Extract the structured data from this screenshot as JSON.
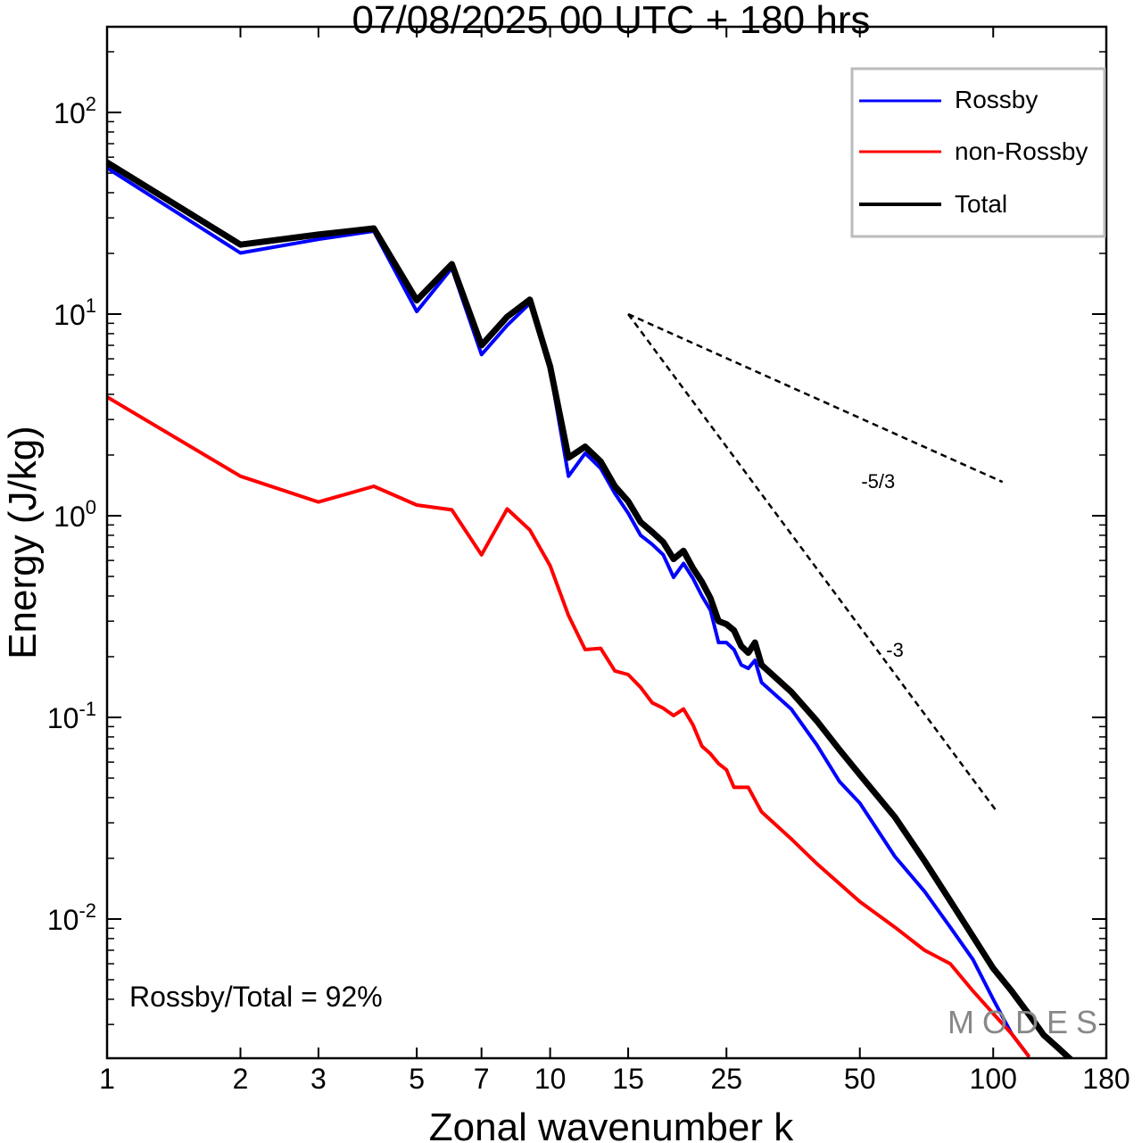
{
  "chart_data": {
    "type": "line",
    "title": "07/08/2025  00 UTC  + 180 hrs",
    "xlabel": "Zonal wavenumber k",
    "ylabel": "Energy (J/kg)",
    "xscale": "log",
    "yscale": "log",
    "xlim": [
      1,
      180
    ],
    "ylim": [
      0.00204,
      266
    ],
    "xticks": [
      1,
      2,
      3,
      5,
      7,
      10,
      15,
      25,
      50,
      100,
      180
    ],
    "xtick_labels": [
      "1",
      "2",
      "3",
      "5",
      "7",
      "10",
      "15",
      "25",
      "50",
      "100",
      "180"
    ],
    "yticks": [
      100,
      10,
      1,
      0.1,
      0.01
    ],
    "ytick_labels": [
      {
        "base": "10",
        "exp": "2"
      },
      {
        "base": "10",
        "exp": "1"
      },
      {
        "base": "10",
        "exp": "0"
      },
      {
        "base": "10",
        "exp": "-1"
      },
      {
        "base": "10",
        "exp": "-2"
      }
    ],
    "legend_position": "top-right",
    "series": [
      {
        "name": "Rossby",
        "color": "#0000ff",
        "x": [
          1,
          2,
          3,
          4,
          5,
          6,
          7,
          8,
          9,
          10,
          11,
          12,
          13,
          14,
          15,
          16,
          17,
          18,
          19,
          20,
          21,
          22,
          23,
          24,
          25,
          26,
          27,
          28,
          29,
          30,
          35,
          40,
          45,
          50,
          60,
          70,
          80,
          90,
          100,
          110,
          120
        ],
        "y": [
          53,
          20.1,
          23.5,
          25.8,
          10.3,
          16.9,
          6.3,
          8.8,
          11.3,
          5.3,
          1.57,
          2.04,
          1.72,
          1.29,
          1.03,
          0.8,
          0.72,
          0.64,
          0.495,
          0.58,
          0.49,
          0.4,
          0.34,
          0.235,
          0.235,
          0.217,
          0.182,
          0.175,
          0.192,
          0.149,
          0.11,
          0.073,
          0.048,
          0.0376,
          0.0204,
          0.0137,
          0.0091,
          0.0063,
          0.004,
          0.0027,
          0.0021
        ]
      },
      {
        "name": "non-Rossby",
        "color": "#ff0000",
        "x": [
          1,
          2,
          3,
          4,
          5,
          6,
          7,
          8,
          9,
          10,
          11,
          12,
          13,
          14,
          15,
          16,
          17,
          18,
          19,
          20,
          21,
          22,
          23,
          24,
          25,
          26,
          28,
          30,
          35,
          40,
          50,
          60,
          70,
          80,
          90,
          100,
          110,
          120
        ],
        "y": [
          3.88,
          1.57,
          1.17,
          1.4,
          1.13,
          1.07,
          0.64,
          1.08,
          0.85,
          0.565,
          0.32,
          0.217,
          0.22,
          0.17,
          0.163,
          0.141,
          0.118,
          0.111,
          0.102,
          0.11,
          0.092,
          0.072,
          0.066,
          0.059,
          0.055,
          0.045,
          0.045,
          0.034,
          0.025,
          0.0188,
          0.0122,
          0.0091,
          0.007,
          0.006,
          0.0044,
          0.0034,
          0.0027,
          0.0021
        ]
      },
      {
        "name": "Total",
        "color": "#000000",
        "x": [
          1,
          2,
          3,
          4,
          5,
          6,
          7,
          8,
          9,
          10,
          11,
          12,
          13,
          14,
          15,
          16,
          17,
          18,
          19,
          20,
          21,
          22,
          23,
          24,
          25,
          26,
          27,
          28,
          29,
          30,
          35,
          40,
          45,
          50,
          60,
          70,
          80,
          90,
          100,
          110,
          120,
          130,
          140,
          150
        ],
        "y": [
          56.5,
          22.1,
          24.8,
          26.6,
          11.7,
          17.7,
          7.0,
          9.7,
          11.8,
          5.5,
          1.94,
          2.2,
          1.86,
          1.4,
          1.18,
          0.93,
          0.83,
          0.74,
          0.61,
          0.67,
          0.55,
          0.47,
          0.39,
          0.3,
          0.29,
          0.27,
          0.226,
          0.209,
          0.235,
          0.182,
          0.134,
          0.096,
          0.069,
          0.052,
          0.032,
          0.0194,
          0.0123,
          0.0082,
          0.0057,
          0.0044,
          0.0034,
          0.00266,
          0.0023,
          0.002
        ]
      }
    ],
    "reference_lines": [
      {
        "label": "-5/3",
        "x": [
          15,
          105
        ],
        "y": [
          10,
          1.47
        ],
        "label_at": [
          55,
          1.37
        ]
      },
      {
        "label": "-3",
        "x": [
          15,
          102
        ],
        "y": [
          10,
          0.034
        ],
        "label_at": [
          60,
          0.2
        ]
      }
    ],
    "annotation": "Rossby/Total = 92%",
    "watermark": "MODES"
  }
}
